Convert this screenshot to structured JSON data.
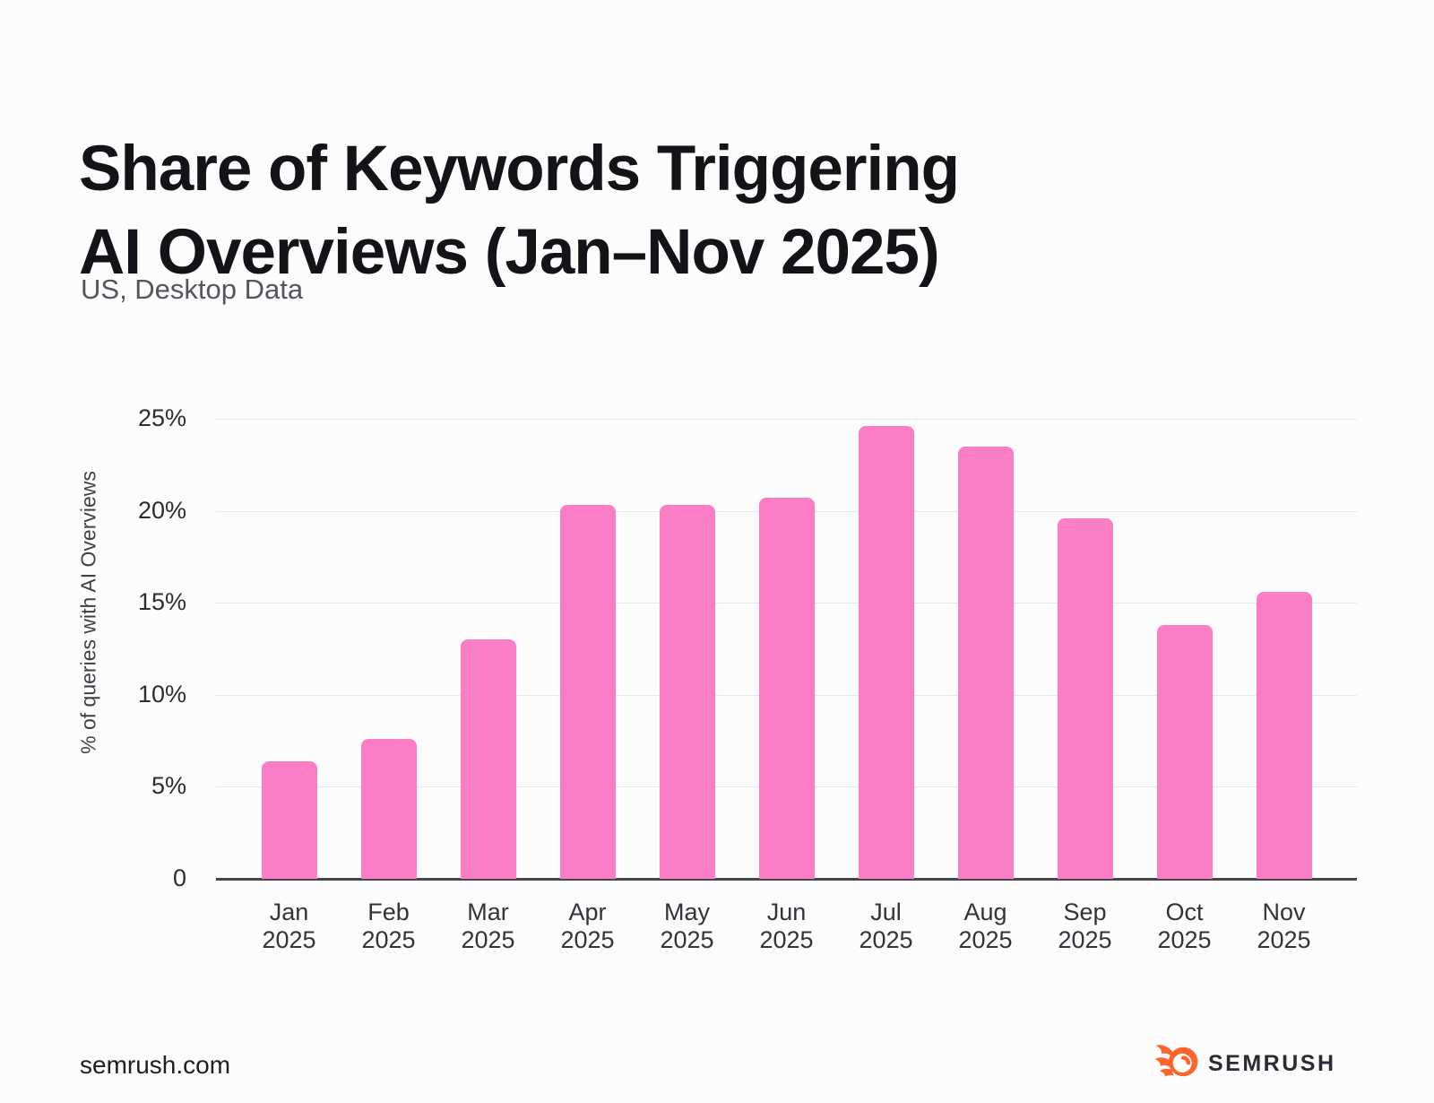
{
  "header": {
    "title_lines": [
      "Share of Keywords Triggering",
      "AI Overviews (Jan–Nov 2025)"
    ],
    "subtitle": "US, Desktop Data"
  },
  "chart_data": {
    "type": "bar",
    "title": "Share of Keywords Triggering AI Overviews (Jan–Nov 2025)",
    "subtitle": "US, Desktop Data",
    "xlabel": "",
    "ylabel": "% of queries with AI Overviews",
    "categories": [
      "Jan 2025",
      "Feb 2025",
      "Mar 2025",
      "Apr 2025",
      "May 2025",
      "Jun 2025",
      "Jul 2025",
      "Aug 2025",
      "Sep 2025",
      "Oct 2025",
      "Nov 2025"
    ],
    "values": [
      6.4,
      7.6,
      13.0,
      20.3,
      20.3,
      20.7,
      24.6,
      23.5,
      19.6,
      13.8,
      15.6
    ],
    "unit": "%",
    "ylim": [
      0,
      25
    ],
    "yticks": [
      0,
      5,
      10,
      15,
      20,
      25
    ],
    "ytick_labels": [
      "0",
      "5%",
      "10%",
      "15%",
      "20%",
      "25%"
    ],
    "grid": "horizontal",
    "legend": "none",
    "bar_color": "#FB7DC6"
  },
  "footer": {
    "site": "semrush.com",
    "brand": "SEMRUSH"
  },
  "colors": {
    "bar_pink": "#FB7DC6",
    "brand_orange": "#FF642D"
  }
}
